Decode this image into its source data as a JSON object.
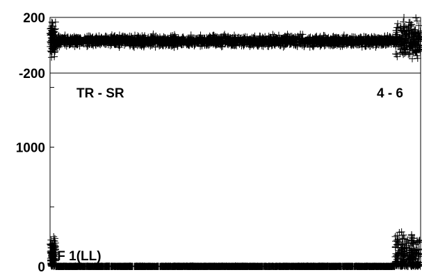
{
  "chart_data": [
    {
      "type": "scatter",
      "name_hidden": "",
      "panel": "top",
      "ylim": [
        -200,
        200
      ],
      "yticks": [
        200,
        -200
      ],
      "ytick_labels": [
        "200",
        "-200"
      ],
      "marker": "plus",
      "series": [
        {
          "segments": [
            {
              "x_range": [
                0.0,
                0.015
              ],
              "y_center": 40,
              "y_spread": 190
            },
            {
              "x_range": [
                0.015,
                0.93
              ],
              "y_center": 30,
              "y_spread": 60
            },
            {
              "x_range": [
                0.93,
                1.0
              ],
              "y_center": 40,
              "y_spread": 200
            }
          ]
        }
      ]
    },
    {
      "type": "scatter",
      "panel": "bottom",
      "ylim": [
        0,
        1620
      ],
      "yticks": [
        1000,
        0
      ],
      "ytick_labels": [
        "1000",
        "0"
      ],
      "marker": "plus",
      "annotations": {
        "top_left": "TR - SR",
        "top_right": "4 - 6",
        "bottom_left": "IF 1(LL)"
      },
      "series": [
        {
          "segments": [
            {
              "x_range": [
                0.0,
                0.015
              ],
              "y_center": 80,
              "y_spread": 260
            },
            {
              "x_range": [
                0.015,
                0.93
              ],
              "y_center": 0,
              "y_spread": 6
            },
            {
              "x_range": [
                0.93,
                1.0
              ],
              "y_center": 90,
              "y_spread": 300
            }
          ]
        }
      ]
    }
  ],
  "colors": {
    "marker": "#000000",
    "frame": "#000000"
  }
}
